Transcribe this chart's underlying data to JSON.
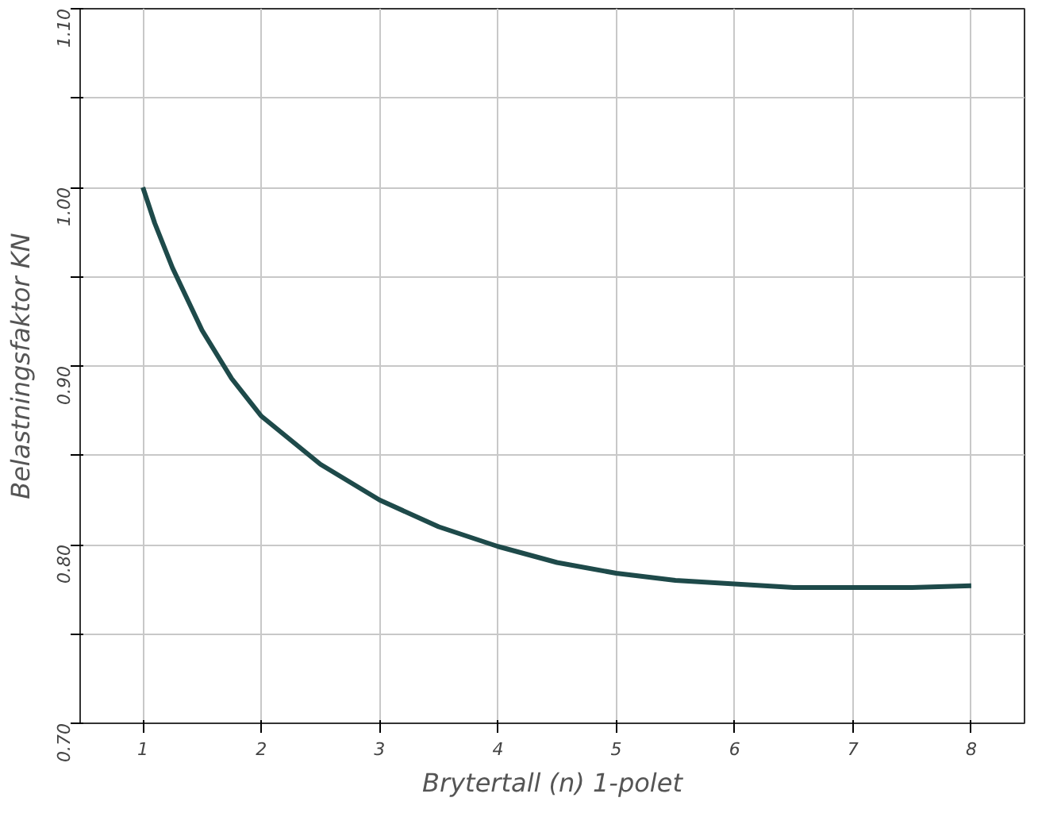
{
  "chart_data": {
    "type": "line",
    "xlabel": "Brytertall (n) 1-polet",
    "ylabel": "Belastningsfaktor KN",
    "x": [
      1,
      1.1,
      1.25,
      1.5,
      1.75,
      2,
      2.5,
      3,
      3.5,
      4,
      4.5,
      5,
      5.5,
      6,
      6.5,
      7,
      7.5,
      8
    ],
    "series": [
      {
        "color": "#1e4a4a",
        "values": [
          1.0,
          0.98,
          0.955,
          0.92,
          0.893,
          0.872,
          0.845,
          0.825,
          0.81,
          0.799,
          0.79,
          0.784,
          0.78,
          0.778,
          0.776,
          0.776,
          0.776,
          0.777
        ]
      }
    ],
    "xlim": [
      0.47,
      8.45
    ],
    "ylim": [
      0.7,
      1.1
    ],
    "xticks": [
      1,
      2,
      3,
      4,
      5,
      6,
      7,
      8
    ],
    "yticks": [
      {
        "value": 0.7,
        "label": "0.70"
      },
      {
        "value": 0.75,
        "label": null
      },
      {
        "value": 0.8,
        "label": "0.80"
      },
      {
        "value": 0.85,
        "label": null
      },
      {
        "value": 0.9,
        "label": "0.90"
      },
      {
        "value": 0.95,
        "label": null
      },
      {
        "value": 1.0,
        "label": "1.00"
      },
      {
        "value": 1.05,
        "label": null
      },
      {
        "value": 1.1,
        "label": "1.10"
      }
    ],
    "grid": true,
    "marker": "none",
    "line_style": "solid"
  }
}
